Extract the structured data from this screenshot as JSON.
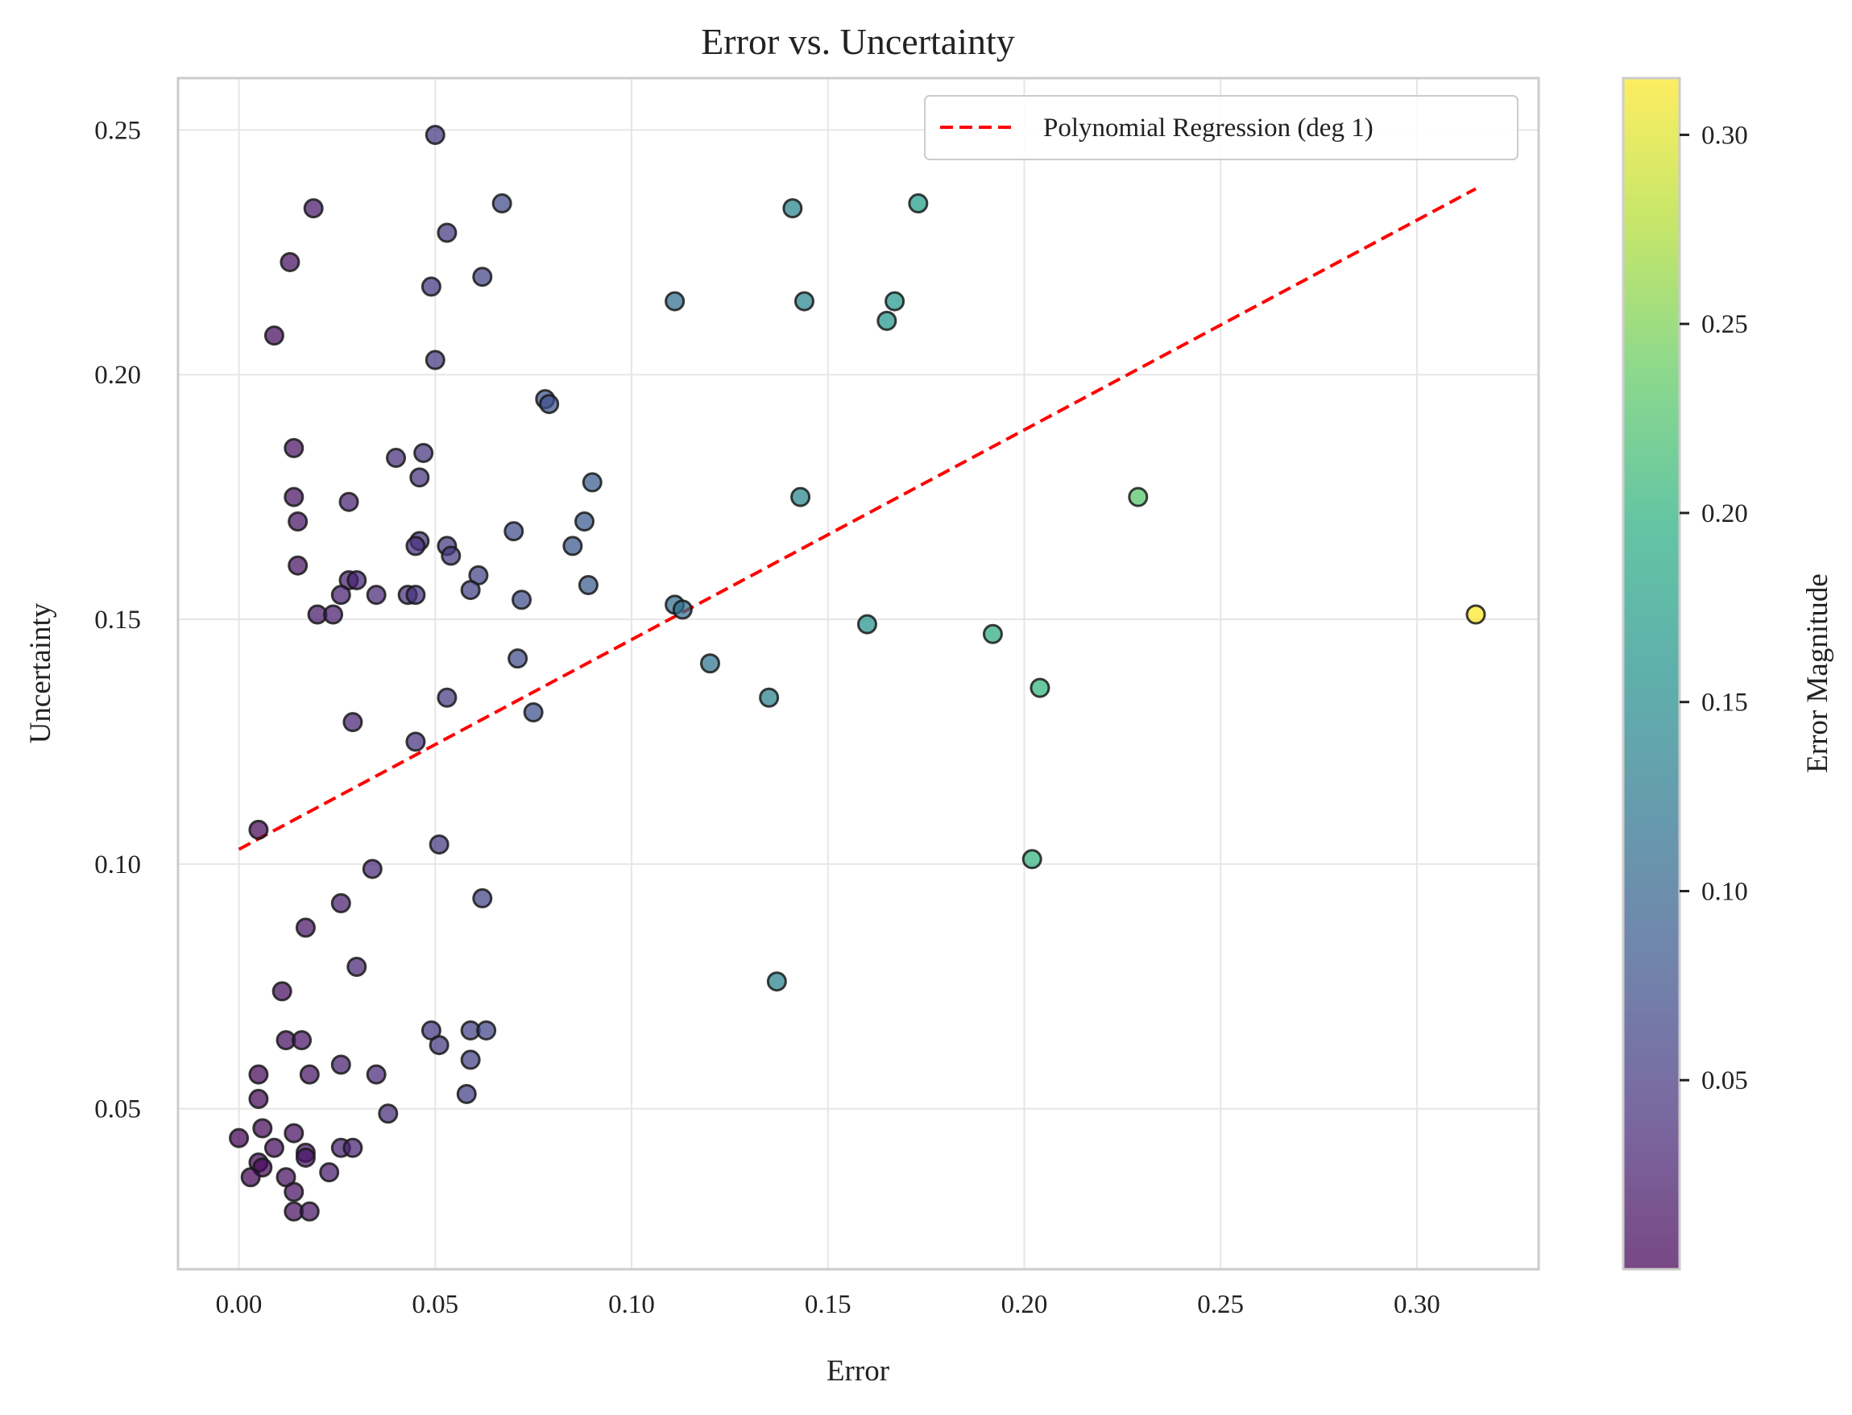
{
  "chart_data": {
    "type": "scatter",
    "title": "Error vs. Uncertainty",
    "xlabel": "Error",
    "ylabel": "Uncertainty",
    "xlim": [
      -0.0155,
      0.331
    ],
    "ylim": [
      0.0172,
      0.2606
    ],
    "x_ticks": [
      "0.00",
      "0.05",
      "0.10",
      "0.15",
      "0.20",
      "0.25",
      "0.30"
    ],
    "y_ticks": [
      "0.05",
      "0.10",
      "0.15",
      "0.20",
      "0.25"
    ],
    "grid": true,
    "legend": {
      "position": "top-right",
      "entries": [
        "Polynomial Regression (deg 1)"
      ]
    },
    "regression": {
      "name": "Polynomial Regression (deg 1)",
      "color": "#ff0000",
      "style": "dashed",
      "x": [
        0.0,
        0.315
      ],
      "y": [
        0.103,
        0.238
      ]
    },
    "colorbar": {
      "label": "Error Magnitude",
      "colormap": "viridis",
      "range": [
        0.0,
        0.315
      ],
      "ticks": [
        "0.05",
        "0.10",
        "0.15",
        "0.20",
        "0.25",
        "0.30"
      ]
    },
    "points": [
      [
        0.05,
        0.249
      ],
      [
        0.019,
        0.234
      ],
      [
        0.067,
        0.235
      ],
      [
        0.053,
        0.229
      ],
      [
        0.013,
        0.223
      ],
      [
        0.062,
        0.22
      ],
      [
        0.049,
        0.218
      ],
      [
        0.009,
        0.208
      ],
      [
        0.05,
        0.203
      ],
      [
        0.078,
        0.195
      ],
      [
        0.079,
        0.194
      ],
      [
        0.014,
        0.185
      ],
      [
        0.04,
        0.183
      ],
      [
        0.047,
        0.184
      ],
      [
        0.046,
        0.179
      ],
      [
        0.09,
        0.178
      ],
      [
        0.014,
        0.175
      ],
      [
        0.028,
        0.174
      ],
      [
        0.015,
        0.17
      ],
      [
        0.088,
        0.17
      ],
      [
        0.07,
        0.168
      ],
      [
        0.046,
        0.166
      ],
      [
        0.045,
        0.165
      ],
      [
        0.053,
        0.165
      ],
      [
        0.085,
        0.165
      ],
      [
        0.054,
        0.163
      ],
      [
        0.015,
        0.161
      ],
      [
        0.061,
        0.159
      ],
      [
        0.028,
        0.158
      ],
      [
        0.03,
        0.158
      ],
      [
        0.089,
        0.157
      ],
      [
        0.059,
        0.156
      ],
      [
        0.026,
        0.155
      ],
      [
        0.035,
        0.155
      ],
      [
        0.043,
        0.155
      ],
      [
        0.045,
        0.155
      ],
      [
        0.072,
        0.154
      ],
      [
        0.02,
        0.151
      ],
      [
        0.024,
        0.151
      ],
      [
        0.071,
        0.142
      ],
      [
        0.053,
        0.134
      ],
      [
        0.075,
        0.131
      ],
      [
        0.029,
        0.129
      ],
      [
        0.045,
        0.125
      ],
      [
        0.005,
        0.107
      ],
      [
        0.051,
        0.104
      ],
      [
        0.034,
        0.099
      ],
      [
        0.062,
        0.093
      ],
      [
        0.026,
        0.092
      ],
      [
        0.017,
        0.087
      ],
      [
        0.03,
        0.079
      ],
      [
        0.011,
        0.074
      ],
      [
        0.049,
        0.066
      ],
      [
        0.059,
        0.066
      ],
      [
        0.063,
        0.066
      ],
      [
        0.012,
        0.064
      ],
      [
        0.016,
        0.064
      ],
      [
        0.051,
        0.063
      ],
      [
        0.026,
        0.059
      ],
      [
        0.059,
        0.06
      ],
      [
        0.005,
        0.057
      ],
      [
        0.018,
        0.057
      ],
      [
        0.035,
        0.057
      ],
      [
        0.058,
        0.053
      ],
      [
        0.005,
        0.052
      ],
      [
        0.038,
        0.049
      ],
      [
        0.006,
        0.046
      ],
      [
        0.014,
        0.045
      ],
      [
        0.0,
        0.044
      ],
      [
        0.009,
        0.042
      ],
      [
        0.017,
        0.041
      ],
      [
        0.017,
        0.04
      ],
      [
        0.026,
        0.042
      ],
      [
        0.029,
        0.042
      ],
      [
        0.005,
        0.039
      ],
      [
        0.006,
        0.038
      ],
      [
        0.003,
        0.036
      ],
      [
        0.012,
        0.036
      ],
      [
        0.023,
        0.037
      ],
      [
        0.014,
        0.033
      ],
      [
        0.014,
        0.029
      ],
      [
        0.018,
        0.029
      ],
      [
        0.111,
        0.215
      ],
      [
        0.141,
        0.234
      ],
      [
        0.144,
        0.215
      ],
      [
        0.167,
        0.215
      ],
      [
        0.165,
        0.211
      ],
      [
        0.173,
        0.235
      ],
      [
        0.143,
        0.175
      ],
      [
        0.229,
        0.175
      ],
      [
        0.111,
        0.153
      ],
      [
        0.113,
        0.152
      ],
      [
        0.16,
        0.149
      ],
      [
        0.192,
        0.147
      ],
      [
        0.12,
        0.141
      ],
      [
        0.135,
        0.134
      ],
      [
        0.204,
        0.136
      ],
      [
        0.315,
        0.151
      ],
      [
        0.202,
        0.101
      ],
      [
        0.137,
        0.076
      ]
    ]
  }
}
